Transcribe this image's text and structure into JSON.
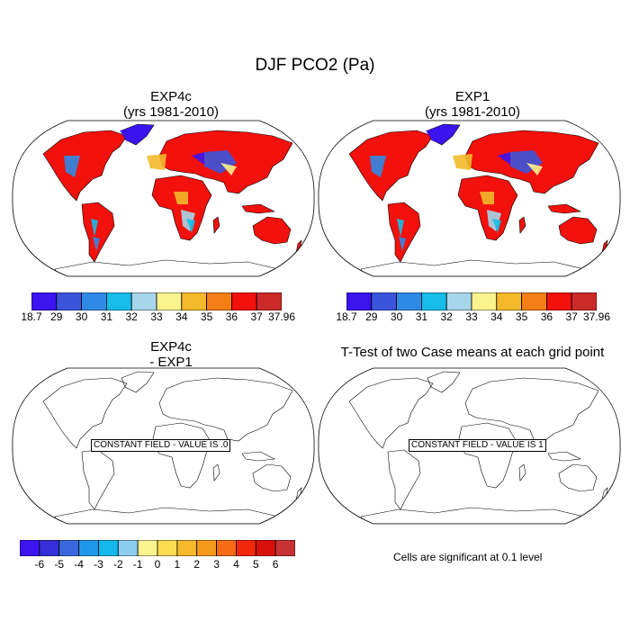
{
  "figure": {
    "title": "DJF PCO2 (Pa)"
  },
  "panels": [
    {
      "id": "p1",
      "title_line1": "EXP4c",
      "title_line2": "(yrs 1981-2010)",
      "filled": true
    },
    {
      "id": "p2",
      "title_line1": "EXP1",
      "title_line2": "(yrs 1981-2010)",
      "filled": true
    },
    {
      "id": "p3",
      "title_line1": "EXP4c",
      "title_line2": "- EXP1",
      "filled": false,
      "constant_field_label": "CONSTANT FIELD - VALUE IS .0"
    },
    {
      "id": "p4",
      "title_line1": "T-Test of two Case means at each grid point",
      "title_line2": "",
      "filled": false,
      "constant_field_label": "CONSTANT FIELD - VALUE IS 1"
    }
  ],
  "colorbars": {
    "top": {
      "labels": [
        "18.7",
        "29",
        "30",
        "31",
        "32",
        "33",
        "34",
        "35",
        "36",
        "37",
        "37.96"
      ],
      "colors": [
        "#3b14f0",
        "#3a55dc",
        "#2f8ae6",
        "#17bce8",
        "#a6d6ea",
        "#fbf38d",
        "#f4b92a",
        "#f57e16",
        "#f2110c",
        "#cc2a2a"
      ]
    },
    "bottom": {
      "labels": [
        "-6",
        "-5",
        "-4",
        "-3",
        "-2",
        "-1",
        "0",
        "1",
        "2",
        "3",
        "4",
        "5",
        "6"
      ],
      "colors": [
        "#3b14f0",
        "#3330d8",
        "#3a68dc",
        "#1e97ea",
        "#15b8ec",
        "#8ccdee",
        "#fbf38d",
        "#fbdc52",
        "#f6b92a",
        "#f59a1c",
        "#f76b14",
        "#f2270c",
        "#d8110c",
        "#c93232"
      ]
    }
  },
  "significance_note": "Cells are significant at 0.1 level"
}
